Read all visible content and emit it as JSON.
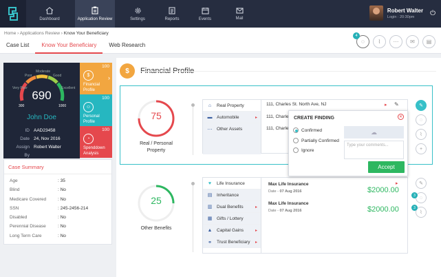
{
  "nav": {
    "items": [
      {
        "label": "Dashboard",
        "icon": "home-icon"
      },
      {
        "label": "Application Review",
        "icon": "clipboard-icon",
        "active": true
      },
      {
        "label": "Settings",
        "icon": "gear-icon"
      },
      {
        "label": "Reports",
        "icon": "reports-icon"
      },
      {
        "label": "Events",
        "icon": "calendar-icon"
      },
      {
        "label": "Mail",
        "icon": "mail-icon"
      }
    ],
    "user": {
      "name": "Robert Walter",
      "login": "Login : 20:30pm"
    }
  },
  "breadcrumb": {
    "home": "Home",
    "sep1": "›",
    "section": "Applications Review",
    "sep2": "›",
    "current": "Know Your Beneficiary"
  },
  "tabs": [
    "Case List",
    "Know Your Beneficiary",
    "Web Research"
  ],
  "toolbar": {
    "badge_count": "4"
  },
  "profile": {
    "gauge": {
      "labels": [
        "Very Poor",
        "Poor",
        "Moderate",
        "Good",
        "Excellent"
      ],
      "min": "300",
      "max": "1000",
      "score": "690"
    },
    "name": "John Doe",
    "rows": [
      {
        "k": "ID",
        "v": "AAD23458"
      },
      {
        "k": "Date",
        "v": "24, Nov 2016"
      },
      {
        "k": "Assign By",
        "v": "Robert Walter"
      }
    ],
    "cards": [
      {
        "num": "100",
        "label": "Financial Profile",
        "color": "#f2a640"
      },
      {
        "num": "100",
        "label": "Personal Profile",
        "color": "#26b7c0"
      },
      {
        "num": "100",
        "label": "Spenddown Analysis",
        "color": "#e5484d"
      }
    ]
  },
  "case_summary": {
    "title": "Case Summary",
    "rows": [
      {
        "k": "Age",
        "v": ": 35"
      },
      {
        "k": "Blind",
        "v": ": No"
      },
      {
        "k": "Medicare Covered",
        "v": ": No"
      },
      {
        "k": "SSN",
        "v": ": 245-2456-214"
      },
      {
        "k": "Disabled",
        "v": ": No"
      },
      {
        "k": "Perennial Disease",
        "v": ": No"
      },
      {
        "k": "Long Term Care",
        "v": ": No"
      }
    ]
  },
  "financial": {
    "title": "Financial Profile",
    "real": {
      "score": "75",
      "label": "Real / Personal Property",
      "fraction": 0.75
    },
    "real_items": [
      "Real Property",
      "Automobile",
      "Other Assets"
    ],
    "addresses": [
      "111, Charles St. North Ave, NJ",
      "111, Charles St. N",
      "111, Charles St. N"
    ],
    "other": {
      "score": "25",
      "label": "Other Benefits",
      "fraction": 0.25
    },
    "other_items": [
      "Life Insurance",
      "Inheritance",
      "Dual Benefits",
      "Gifts / Lottery",
      "Capital Gains",
      "Trust Beneficiary"
    ],
    "policies": [
      {
        "title": "Max Life Insurance",
        "date_label": "Date",
        "date": "07 Aug 2016",
        "amount": "$2000.00"
      },
      {
        "title": "Max Life Insurance",
        "date_label": "Date",
        "date": "07 Aug 2016",
        "amount": "$2000.00"
      }
    ],
    "side_badges": [
      "3",
      "3"
    ]
  },
  "finding": {
    "title": "CREATE FINDING",
    "options": [
      "Confirmed",
      "Partially Confirmed",
      "Ignore"
    ],
    "comments_placeholder": "Type your comments...",
    "accept": "Accept"
  },
  "colors": {
    "accent": "#e5484d",
    "teal": "#37c0c8",
    "green": "#2db760",
    "nav": "#262d40"
  }
}
